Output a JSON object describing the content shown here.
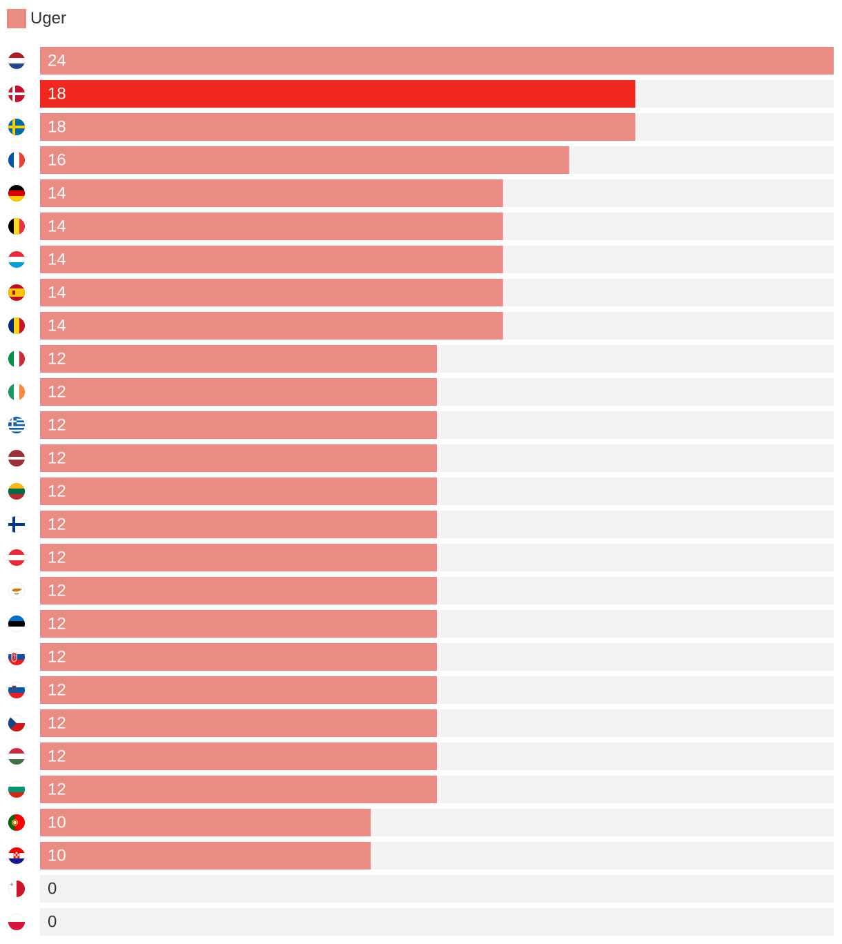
{
  "colors": {
    "bar": "#eb8c82",
    "highlight": "#f2271f",
    "track": "#f3f3f3",
    "label_on_bar": "#ffffff",
    "label_zero": "#333333"
  },
  "chart_data": {
    "type": "bar",
    "orientation": "horizontal",
    "legend": [
      {
        "name": "Uger",
        "position": "top-left"
      }
    ],
    "xlim": [
      0,
      24
    ],
    "grid": false,
    "categories": [
      "Netherlands",
      "Denmark",
      "Sweden",
      "France",
      "Germany",
      "Belgium",
      "Luxembourg",
      "Spain",
      "Romania",
      "Italy",
      "Ireland",
      "Greece",
      "Latvia",
      "Lithuania",
      "Finland",
      "Austria",
      "Cyprus",
      "Estonia",
      "Slovakia",
      "Slovenia",
      "Czech Republic",
      "Hungary",
      "Bulgaria",
      "Portugal",
      "Croatia",
      "Malta",
      "Poland"
    ],
    "flag_icons": [
      "flag-netherlands-icon",
      "flag-denmark-icon",
      "flag-sweden-icon",
      "flag-france-icon",
      "flag-germany-icon",
      "flag-belgium-icon",
      "flag-luxembourg-icon",
      "flag-spain-icon",
      "flag-romania-icon",
      "flag-italy-icon",
      "flag-ireland-icon",
      "flag-greece-icon",
      "flag-latvia-icon",
      "flag-lithuania-icon",
      "flag-finland-icon",
      "flag-austria-icon",
      "flag-cyprus-icon",
      "flag-estonia-icon",
      "flag-slovakia-icon",
      "flag-slovenia-icon",
      "flag-czech-republic-icon",
      "flag-hungary-icon",
      "flag-bulgaria-icon",
      "flag-portugal-icon",
      "flag-croatia-icon",
      "flag-malta-icon",
      "flag-poland-icon"
    ],
    "series": [
      {
        "name": "Uger",
        "values": [
          24,
          18,
          18,
          16,
          14,
          14,
          14,
          14,
          14,
          12,
          12,
          12,
          12,
          12,
          12,
          12,
          12,
          12,
          12,
          12,
          12,
          12,
          12,
          10,
          10,
          0,
          0
        ]
      }
    ],
    "highlight": "Denmark"
  }
}
